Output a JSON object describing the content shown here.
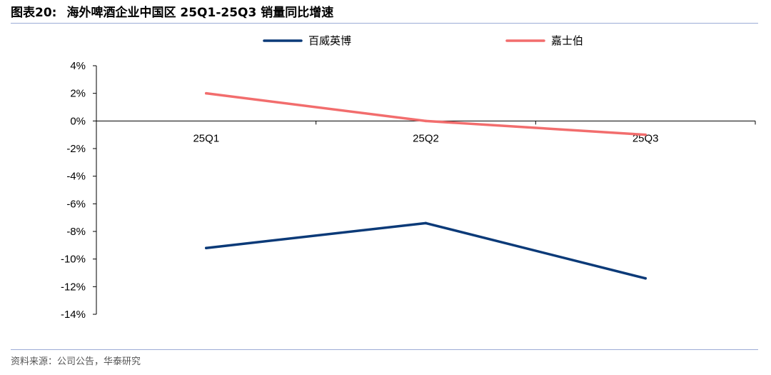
{
  "header": {
    "label": "图表20:",
    "title": "海外啤酒企业中国区 25Q1-25Q3 销量同比增速"
  },
  "footer": {
    "source": "资料来源：公司公告，华泰研究"
  },
  "chart_data": {
    "type": "line",
    "title": "",
    "xlabel": "",
    "ylabel": "",
    "categories": [
      "25Q1",
      "25Q2",
      "25Q3"
    ],
    "series": [
      {
        "name": "百威英博",
        "values": [
          -9.2,
          -7.4,
          -11.4
        ],
        "color": "#0b3a78"
      },
      {
        "name": "嘉士伯",
        "values": [
          2.0,
          0.0,
          -1.0
        ],
        "color": "#f26d6d"
      }
    ],
    "ylim": [
      -14,
      4
    ],
    "ytick_values": [
      4,
      2,
      0,
      -2,
      -4,
      -6,
      -8,
      -10,
      -12,
      -14
    ],
    "ytick_labels": [
      "4%",
      "2%",
      "0%",
      "-2%",
      "-4%",
      "-6%",
      "-8%",
      "-10%",
      "-12%",
      "-14%"
    ],
    "grid": false,
    "legend": "top-center",
    "axis_color": "#000000"
  }
}
